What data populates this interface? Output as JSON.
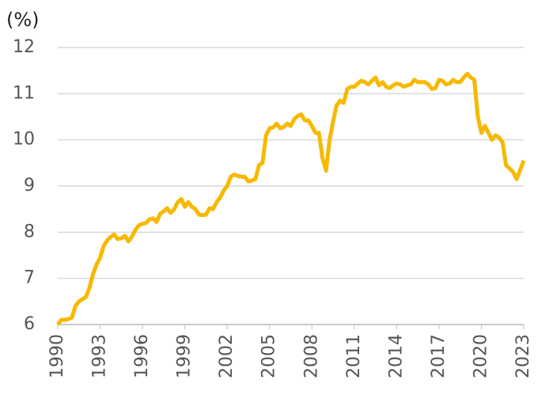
{
  "chart_data": {
    "type": "line",
    "y_label": "(%)",
    "x": [
      1990,
      1990.25,
      1990.5,
      1990.75,
      1991,
      1991.25,
      1991.5,
      1991.75,
      1992,
      1992.25,
      1992.5,
      1992.75,
      1993,
      1993.25,
      1993.5,
      1993.75,
      1994,
      1994.25,
      1994.5,
      1994.75,
      1995,
      1995.25,
      1995.5,
      1995.75,
      1996,
      1996.25,
      1996.5,
      1996.75,
      1997,
      1997.25,
      1997.5,
      1997.75,
      1998,
      1998.25,
      1998.5,
      1998.75,
      1999,
      1999.25,
      1999.5,
      1999.75,
      2000,
      2000.25,
      2000.5,
      2000.75,
      2001,
      2001.25,
      2001.5,
      2001.75,
      2002,
      2002.25,
      2002.5,
      2002.75,
      2003,
      2003.25,
      2003.5,
      2003.75,
      2004,
      2004.25,
      2004.5,
      2004.75,
      2005,
      2005.25,
      2005.5,
      2005.75,
      2006,
      2006.25,
      2006.5,
      2006.75,
      2007,
      2007.25,
      2007.5,
      2007.75,
      2008,
      2008.25,
      2008.5,
      2008.75,
      2009,
      2009.25,
      2009.5,
      2009.75,
      2010,
      2010.25,
      2010.5,
      2010.75,
      2011,
      2011.25,
      2011.5,
      2011.75,
      2012,
      2012.25,
      2012.5,
      2012.75,
      2013,
      2013.25,
      2013.5,
      2013.75,
      2014,
      2014.25,
      2014.5,
      2014.75,
      2015,
      2015.25,
      2015.5,
      2015.75,
      2016,
      2016.25,
      2016.5,
      2016.75,
      2017,
      2017.25,
      2017.5,
      2017.75,
      2018,
      2018.25,
      2018.5,
      2018.75,
      2019,
      2019.25,
      2019.5,
      2019.75,
      2020,
      2020.25,
      2020.5,
      2020.75,
      2021,
      2021.25,
      2021.5,
      2021.75,
      2022,
      2022.25,
      2022.5,
      2022.75,
      2023
    ],
    "series": [
      {
        "color": "#f7b900",
        "values": [
          6.0,
          6.1,
          6.1,
          6.12,
          6.15,
          6.4,
          6.5,
          6.55,
          6.6,
          6.8,
          7.1,
          7.3,
          7.45,
          7.7,
          7.82,
          7.9,
          7.95,
          7.85,
          7.87,
          7.92,
          7.8,
          7.9,
          8.05,
          8.15,
          8.18,
          8.2,
          8.28,
          8.3,
          8.22,
          8.4,
          8.45,
          8.52,
          8.42,
          8.5,
          8.65,
          8.72,
          8.55,
          8.65,
          8.55,
          8.5,
          8.38,
          8.37,
          8.38,
          8.52,
          8.5,
          8.65,
          8.75,
          8.9,
          9.0,
          9.2,
          9.25,
          9.22,
          9.2,
          9.2,
          9.1,
          9.12,
          9.15,
          9.45,
          9.5,
          10.1,
          10.25,
          10.27,
          10.35,
          10.25,
          10.28,
          10.35,
          10.3,
          10.45,
          10.52,
          10.55,
          10.42,
          10.42,
          10.3,
          10.15,
          10.15,
          9.6,
          9.33,
          10.0,
          10.4,
          10.75,
          10.85,
          10.8,
          11.1,
          11.15,
          11.15,
          11.22,
          11.28,
          11.25,
          11.2,
          11.28,
          11.35,
          11.18,
          11.25,
          11.15,
          11.12,
          11.18,
          11.22,
          11.2,
          11.15,
          11.18,
          11.2,
          11.3,
          11.25,
          11.25,
          11.25,
          11.2,
          11.1,
          11.12,
          11.3,
          11.28,
          11.2,
          11.22,
          11.3,
          11.25,
          11.25,
          11.35,
          11.43,
          11.35,
          11.3,
          10.5,
          10.15,
          10.3,
          10.15,
          10.0,
          10.1,
          10.05,
          9.95,
          9.45,
          9.38,
          9.3,
          9.15,
          9.35,
          9.55
        ]
      }
    ],
    "xlim": [
      1990,
      2023
    ],
    "xticks": [
      1990,
      1993,
      1996,
      1999,
      2002,
      2005,
      2008,
      2011,
      2014,
      2017,
      2020,
      2023
    ],
    "ylim": [
      6,
      12
    ],
    "yticks": [
      6,
      7,
      8,
      9,
      10,
      11,
      12
    ],
    "grid": true
  }
}
